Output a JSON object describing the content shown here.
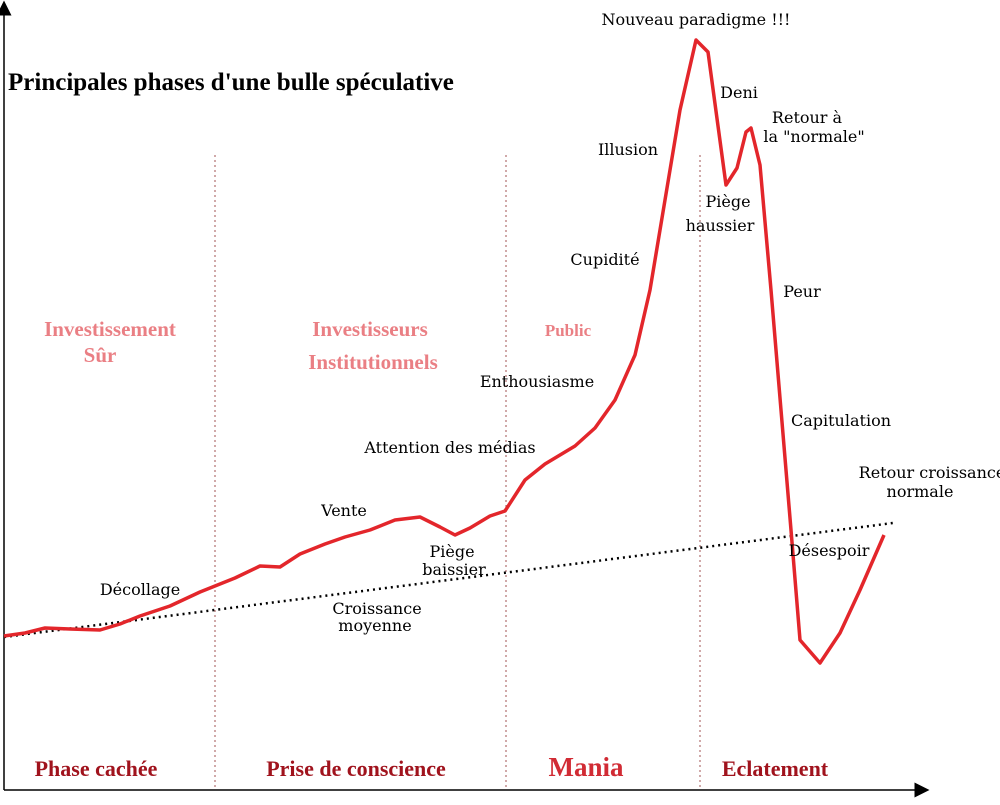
{
  "title": "Principales phases d'une bulle spéculative",
  "actors": {
    "investissement_sur": [
      "Investissement",
      "Sûr"
    ],
    "investisseurs_institutionnels": [
      "Investisseurs",
      "Institutionnels"
    ],
    "public": "Public"
  },
  "phases": {
    "phase_cachee": "Phase cachée",
    "prise_de_conscience": "Prise de conscience",
    "mania": "Mania",
    "eclatement": "Eclatement"
  },
  "annotations": {
    "decollage": "Décollage",
    "vente": "Vente",
    "piege_baissier": [
      "Piège",
      "baissier"
    ],
    "croissance_moyenne": [
      "Croissance",
      "moyenne"
    ],
    "attention_medias": "Attention des médias",
    "enthousiasme": "Enthousiasme",
    "cupidite": "Cupidité",
    "illusion": "Illusion",
    "nouveau_paradigme": "Nouveau paradigme !!!",
    "deni": "Deni",
    "retour_normale": [
      "Retour  à",
      "la \"normale\""
    ],
    "piege_haussier": [
      "Piège",
      "haussier"
    ],
    "peur": "Peur",
    "capitulation": "Capitulation",
    "retour_croissance": [
      "Retour croissance",
      "normale"
    ],
    "desespoir": "Désespoir"
  },
  "colors": {
    "bubble_curve": "#e3262b",
    "trend_line": "#000000",
    "axes": "#000000",
    "phase_separator": "#b07070",
    "phase_label": "#a0131d",
    "actor_label": "#ea7f84"
  }
}
